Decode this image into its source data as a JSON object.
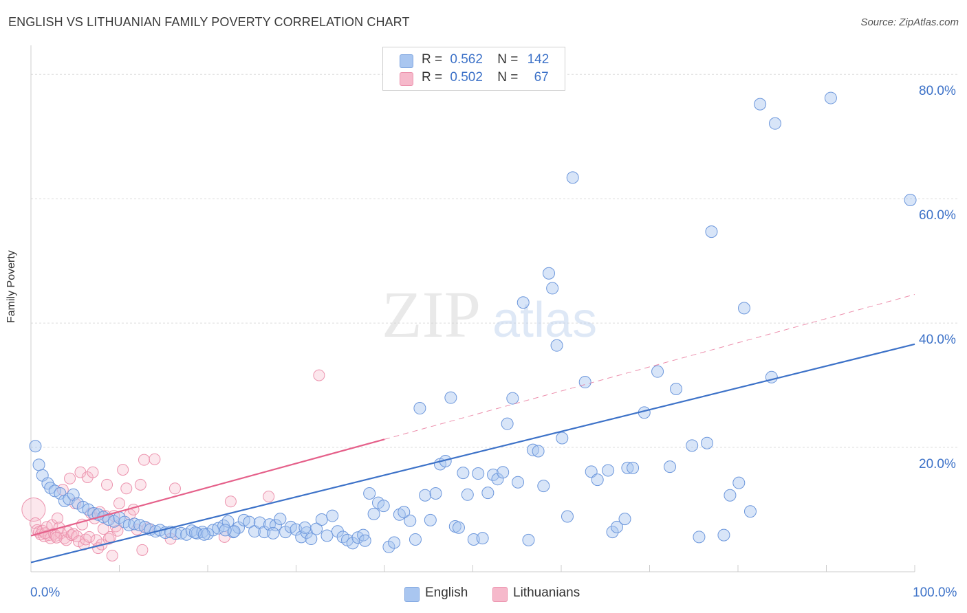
{
  "header": {
    "title": "ENGLISH VS LITHUANIAN FAMILY POVERTY CORRELATION CHART",
    "source": "Source: ZipAtlas.com"
  },
  "watermark": {
    "zip": "ZIP",
    "atlas": "atlas"
  },
  "legend": {
    "rows": [
      {
        "r_label": "R =",
        "r_value": "0.562",
        "n_label": "N =",
        "n_value": "142",
        "color": "#a9c6f0"
      },
      {
        "r_label": "R =",
        "r_value": "0.502",
        "n_label": "N =",
        "n_value": "67",
        "color": "#f6b9cb"
      }
    ]
  },
  "bottom_legend": {
    "english": "English",
    "lithuanians": "Lithuanians"
  },
  "chart_data": {
    "type": "scatter",
    "title": "ENGLISH VS LITHUANIAN FAMILY POVERTY CORRELATION CHART",
    "xlabel": "",
    "ylabel": "Family Poverty",
    "xlim": [
      0,
      100
    ],
    "ylim": [
      0,
      84
    ],
    "x_tick_labels": {
      "min": "0.0%",
      "max": "100.0%"
    },
    "y_ticks": [
      20,
      40,
      60,
      80
    ],
    "y_tick_labels": [
      "20.0%",
      "40.0%",
      "60.0%",
      "80.0%"
    ],
    "grid": true,
    "legend_position": "top-center",
    "colors": {
      "english": "#3d72c8",
      "english_fill": "#a9c6f0",
      "lithuanians": "#e5608a",
      "lithuanians_fill": "#f6b9cb"
    },
    "series": [
      {
        "name": "English",
        "trend": {
          "x": [
            0,
            100
          ],
          "y": [
            1.5,
            36.6
          ]
        },
        "points": [
          [
            0.5,
            20.2
          ],
          [
            0.9,
            17.2
          ],
          [
            1.3,
            15.5
          ],
          [
            1.9,
            14.2
          ],
          [
            2.2,
            13.5
          ],
          [
            2.7,
            13.0
          ],
          [
            3.3,
            12.6
          ],
          [
            3.8,
            11.4
          ],
          [
            4.3,
            11.7
          ],
          [
            4.8,
            12.4
          ],
          [
            5.3,
            11.0
          ],
          [
            5.9,
            10.4
          ],
          [
            6.5,
            10.0
          ],
          [
            7.1,
            9.4
          ],
          [
            7.6,
            9.2
          ],
          [
            8.2,
            8.8
          ],
          [
            8.8,
            8.4
          ],
          [
            9.4,
            8.1
          ],
          [
            10.0,
            8.7
          ],
          [
            10.6,
            8.0
          ],
          [
            11.1,
            7.5
          ],
          [
            11.7,
            7.7
          ],
          [
            12.3,
            7.5
          ],
          [
            12.9,
            7.2
          ],
          [
            13.5,
            6.8
          ],
          [
            14.1,
            6.5
          ],
          [
            14.6,
            6.7
          ],
          [
            15.2,
            6.3
          ],
          [
            15.8,
            6.4
          ],
          [
            16.4,
            6.1
          ],
          [
            17.0,
            6.2
          ],
          [
            17.6,
            6.0
          ],
          [
            18.2,
            6.6
          ],
          [
            18.8,
            6.2
          ],
          [
            19.4,
            6.4
          ],
          [
            20.0,
            6.1
          ],
          [
            20.6,
            6.7
          ],
          [
            21.2,
            7.0
          ],
          [
            21.8,
            7.4
          ],
          [
            22.3,
            8.1
          ],
          [
            22.9,
            6.4
          ],
          [
            23.5,
            7.1
          ],
          [
            24.1,
            8.3
          ],
          [
            24.7,
            8.0
          ],
          [
            25.3,
            6.5
          ],
          [
            25.9,
            7.9
          ],
          [
            26.4,
            6.4
          ],
          [
            27.0,
            7.6
          ],
          [
            27.7,
            7.5
          ],
          [
            28.2,
            8.5
          ],
          [
            28.8,
            6.4
          ],
          [
            29.4,
            7.2
          ],
          [
            30.0,
            6.8
          ],
          [
            30.6,
            5.6
          ],
          [
            31.2,
            6.3
          ],
          [
            31.7,
            5.3
          ],
          [
            32.3,
            6.9
          ],
          [
            32.9,
            8.4
          ],
          [
            33.5,
            5.8
          ],
          [
            34.1,
            9.0
          ],
          [
            34.7,
            6.5
          ],
          [
            35.3,
            5.6
          ],
          [
            35.8,
            5.1
          ],
          [
            36.4,
            4.6
          ],
          [
            37.0,
            5.5
          ],
          [
            37.6,
            5.9
          ],
          [
            38.3,
            12.6
          ],
          [
            38.8,
            9.3
          ],
          [
            39.3,
            11.1
          ],
          [
            39.9,
            10.6
          ],
          [
            40.5,
            4.0
          ],
          [
            41.1,
            4.7
          ],
          [
            41.7,
            9.2
          ],
          [
            42.2,
            9.6
          ],
          [
            42.9,
            8.2
          ],
          [
            43.5,
            5.2
          ],
          [
            44.0,
            26.3
          ],
          [
            44.6,
            12.3
          ],
          [
            45.2,
            8.3
          ],
          [
            45.8,
            12.6
          ],
          [
            46.3,
            17.3
          ],
          [
            46.9,
            17.8
          ],
          [
            47.5,
            28.0
          ],
          [
            48.0,
            7.3
          ],
          [
            48.4,
            7.1
          ],
          [
            48.9,
            15.9
          ],
          [
            49.4,
            12.4
          ],
          [
            50.1,
            5.2
          ],
          [
            50.6,
            15.8
          ],
          [
            51.1,
            5.4
          ],
          [
            51.7,
            12.7
          ],
          [
            52.3,
            15.6
          ],
          [
            52.8,
            14.9
          ],
          [
            53.4,
            16.0
          ],
          [
            53.9,
            23.8
          ],
          [
            54.5,
            27.9
          ],
          [
            55.1,
            14.4
          ],
          [
            55.7,
            43.3
          ],
          [
            56.3,
            5.1
          ],
          [
            56.8,
            19.6
          ],
          [
            57.4,
            19.4
          ],
          [
            58.0,
            13.8
          ],
          [
            58.6,
            48.0
          ],
          [
            59.0,
            45.6
          ],
          [
            59.5,
            36.4
          ],
          [
            60.1,
            21.5
          ],
          [
            60.7,
            8.9
          ],
          [
            61.3,
            63.4
          ],
          [
            62.7,
            30.5
          ],
          [
            63.4,
            16.1
          ],
          [
            64.1,
            14.8
          ],
          [
            65.3,
            16.3
          ],
          [
            65.8,
            6.4
          ],
          [
            66.3,
            7.2
          ],
          [
            67.2,
            8.5
          ],
          [
            67.5,
            16.7
          ],
          [
            68.1,
            16.7
          ],
          [
            69.4,
            25.6
          ],
          [
            70.9,
            32.2
          ],
          [
            72.3,
            16.9
          ],
          [
            73.0,
            29.4
          ],
          [
            74.8,
            20.3
          ],
          [
            75.6,
            5.6
          ],
          [
            76.5,
            20.7
          ],
          [
            77.0,
            54.7
          ],
          [
            78.4,
            5.9
          ],
          [
            79.1,
            12.3
          ],
          [
            80.1,
            14.3
          ],
          [
            80.7,
            42.4
          ],
          [
            81.4,
            9.7
          ],
          [
            82.5,
            75.2
          ],
          [
            83.8,
            31.3
          ],
          [
            84.2,
            72.1
          ],
          [
            90.5,
            76.2
          ],
          [
            99.5,
            59.8
          ],
          [
            18.6,
            6.3
          ],
          [
            23.0,
            6.5
          ],
          [
            27.4,
            6.2
          ],
          [
            31.0,
            7.1
          ],
          [
            37.8,
            5.0
          ],
          [
            19.6,
            6.0
          ],
          [
            22.0,
            6.7
          ]
        ]
      },
      {
        "name": "Lithuanians",
        "trend": {
          "x": [
            0,
            40
          ],
          "y": [
            5.8,
            21.3
          ]
        },
        "trend_extension": {
          "x": [
            40,
            100
          ],
          "y": [
            21.3,
            44.6
          ]
        },
        "points": [
          [
            0.3,
            10.0
          ],
          [
            0.5,
            7.8
          ],
          [
            0.7,
            6.7
          ],
          [
            0.9,
            6.4
          ],
          [
            1.1,
            6.0
          ],
          [
            1.3,
            6.6
          ],
          [
            1.5,
            5.7
          ],
          [
            1.8,
            7.2
          ],
          [
            2.0,
            5.9
          ],
          [
            2.2,
            5.4
          ],
          [
            2.4,
            7.5
          ],
          [
            2.6,
            6.1
          ],
          [
            2.8,
            5.8
          ],
          [
            3.0,
            8.6
          ],
          [
            3.2,
            7.1
          ],
          [
            3.4,
            6.2
          ],
          [
            3.6,
            13.2
          ],
          [
            3.8,
            5.4
          ],
          [
            4.0,
            5.1
          ],
          [
            4.2,
            6.4
          ],
          [
            4.4,
            15.0
          ],
          [
            4.6,
            5.9
          ],
          [
            4.8,
            6.1
          ],
          [
            5.0,
            11.0
          ],
          [
            5.2,
            5.7
          ],
          [
            5.4,
            4.9
          ],
          [
            5.6,
            16.0
          ],
          [
            5.8,
            7.6
          ],
          [
            6.0,
            4.4
          ],
          [
            6.2,
            5.2
          ],
          [
            6.4,
            15.2
          ],
          [
            6.6,
            5.6
          ],
          [
            6.8,
            9.4
          ],
          [
            7.0,
            16.0
          ],
          [
            7.2,
            8.6
          ],
          [
            7.4,
            5.1
          ],
          [
            7.6,
            3.8
          ],
          [
            7.8,
            9.6
          ],
          [
            8.0,
            4.4
          ],
          [
            8.2,
            6.9
          ],
          [
            8.4,
            9.0
          ],
          [
            8.6,
            14.0
          ],
          [
            8.8,
            5.3
          ],
          [
            9.0,
            5.6
          ],
          [
            9.2,
            2.6
          ],
          [
            9.4,
            9.0
          ],
          [
            9.6,
            7.3
          ],
          [
            9.8,
            6.6
          ],
          [
            10.0,
            11.0
          ],
          [
            10.4,
            16.4
          ],
          [
            10.8,
            13.4
          ],
          [
            11.2,
            9.2
          ],
          [
            11.6,
            10.0
          ],
          [
            12.0,
            6.8
          ],
          [
            12.4,
            14.0
          ],
          [
            12.8,
            18.0
          ],
          [
            13.2,
            7.0
          ],
          [
            14.0,
            18.1
          ],
          [
            15.8,
            5.3
          ],
          [
            16.3,
            13.4
          ],
          [
            21.9,
            5.6
          ],
          [
            22.6,
            11.3
          ],
          [
            26.9,
            12.1
          ],
          [
            32.6,
            31.6
          ],
          [
            12.6,
            3.5
          ],
          [
            2.9,
            5.5
          ],
          [
            1.6,
            6.2
          ]
        ]
      }
    ]
  }
}
